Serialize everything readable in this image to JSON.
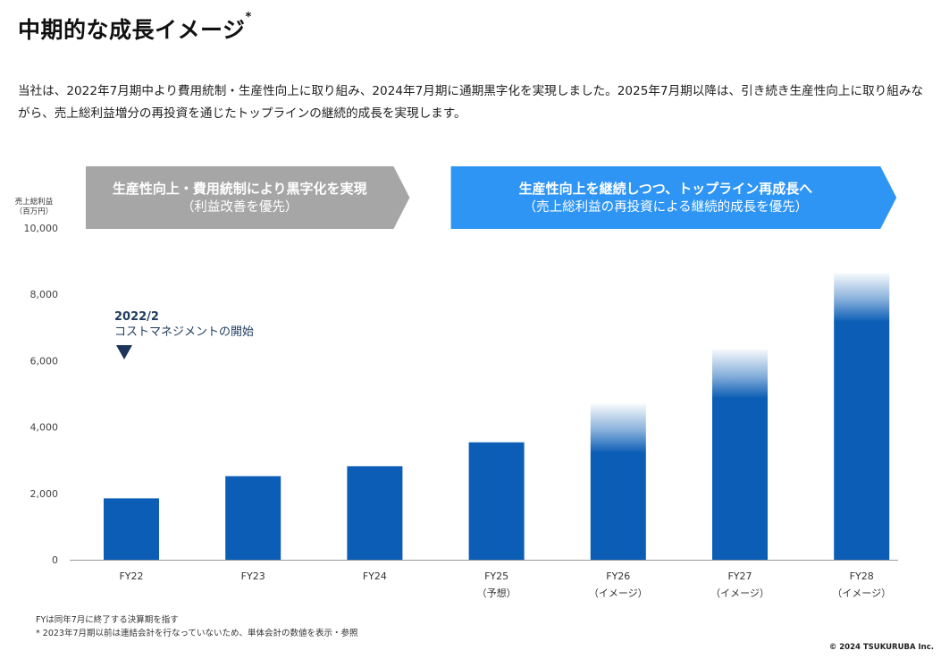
{
  "page": {
    "title": "中期的な成長イメージ",
    "title_mark": "*",
    "description": "当社は、2022年7月期中より費用統制・生産性向上に取り組み、2024年7月期に通期黒字化を実現しました。2025年7月期以降は、引き続き生産性向上に取り組みながら、売上総利益増分の再投資を通じたトップラインの継続的成長を実現します。",
    "footnotes": [
      "FYは同年7月に終了する決算期を指す",
      "*  2023年7月期以前は連結会計を行なっていないため、単体会計の数値を表示・参照"
    ],
    "copyright": "© 2024 TSUKURUBA Inc."
  },
  "phases": [
    {
      "line1": "生産性向上・費用統制により黒字化を実現",
      "line2": "（利益改善を優先）",
      "color": "#a6a6a6",
      "from_category": 0,
      "to_category": 2
    },
    {
      "line1": "生産性向上を継続しつつ、トップライン再成長へ",
      "line2": "（売上総利益の再投資による継続的成長を優先）",
      "color": "#2e95f5",
      "from_category": 3,
      "to_category": 6
    }
  ],
  "annotation": {
    "date": "2022/2",
    "text": "コストマネジメントの開始",
    "category_index": 0
  },
  "colors": {
    "bar": "#0b5db5",
    "annotation_text": "#1f3b5e",
    "marker": "#1a3558",
    "axis": "#999999"
  },
  "chart_data": {
    "type": "bar",
    "title": "中期的な成長イメージ",
    "ylabel_line1": "売上総利益",
    "ylabel_line2": "（百万円）",
    "ylim": [
      0,
      10000
    ],
    "yticks": [
      0,
      2000,
      4000,
      6000,
      8000,
      10000
    ],
    "ytick_labels": [
      "0",
      "2,000",
      "4,000",
      "6,000",
      "8,000",
      "10,000"
    ],
    "categories": [
      "FY22",
      "FY23",
      "FY24",
      "FY25",
      "FY26",
      "FY27",
      "FY28"
    ],
    "category_sublabels": [
      "",
      "",
      "",
      "（予想）",
      "（イメージ）",
      "（イメージ）",
      "（イメージ）"
    ],
    "values": [
      1850,
      2520,
      2820,
      3540,
      4700,
      6350,
      8650
    ],
    "faded_top": [
      false,
      false,
      false,
      false,
      true,
      true,
      true
    ]
  }
}
